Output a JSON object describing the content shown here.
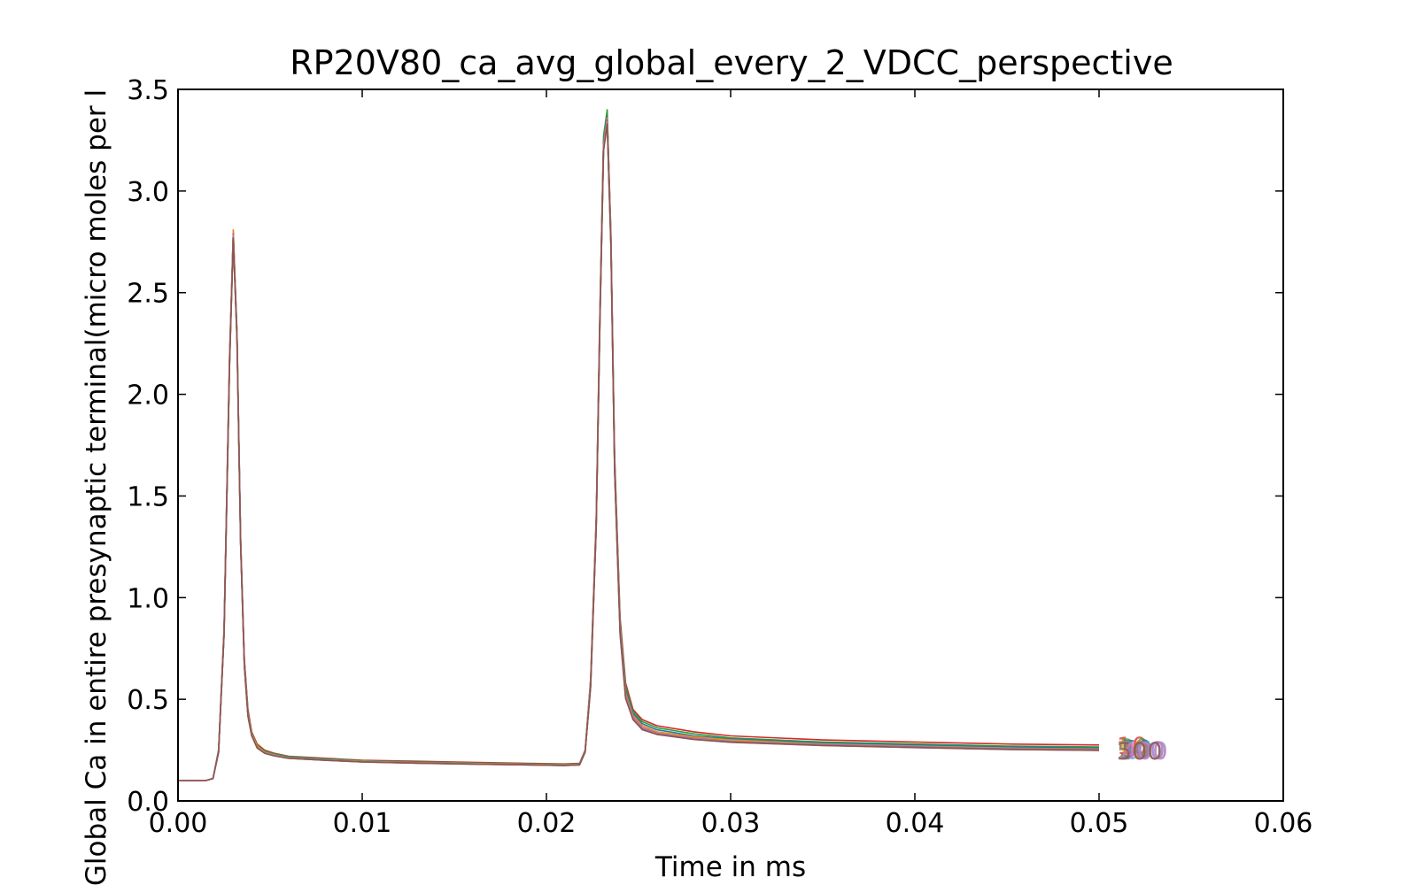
{
  "chart_data": {
    "type": "line",
    "title": "RP20V80_ca_avg_global_every_2_VDCC_perspective",
    "xlabel": "Time in ms",
    "ylabel": "Global Ca in entire presynaptic terminal(micro moles per l",
    "xlim": [
      0,
      0.06
    ],
    "ylim": [
      0,
      3.5
    ],
    "xticks": [
      "0.00",
      "0.01",
      "0.02",
      "0.03",
      "0.04",
      "0.05",
      "0.06"
    ],
    "yticks": [
      "0.0",
      "0.5",
      "1.0",
      "1.5",
      "2.0",
      "2.5",
      "3.0",
      "3.5"
    ],
    "grid": false,
    "legend": "none",
    "end_labels": [
      "10",
      "30",
      "50",
      "70",
      "90",
      "100",
      "200",
      "300",
      "400",
      "500"
    ],
    "x": [
      0,
      0.0015,
      0.0019,
      0.0022,
      0.0025,
      0.0028,
      0.003,
      0.0032,
      0.0034,
      0.0036,
      0.0038,
      0.004,
      0.0043,
      0.0047,
      0.0052,
      0.006,
      0.008,
      0.01,
      0.013,
      0.016,
      0.019,
      0.021,
      0.0218,
      0.0221,
      0.0224,
      0.0227,
      0.0229,
      0.0231,
      0.0233,
      0.0235,
      0.0237,
      0.024,
      0.0243,
      0.0247,
      0.0252,
      0.026,
      0.028,
      0.03,
      0.035,
      0.04,
      0.045,
      0.05
    ],
    "series": [
      {
        "values": [
          0.1,
          0.1,
          0.11,
          0.25,
          0.85,
          2.2,
          2.78,
          2.3,
          1.3,
          0.7,
          0.45,
          0.34,
          0.28,
          0.25,
          0.235,
          0.22,
          0.21,
          0.2,
          0.195,
          0.19,
          0.185,
          0.182,
          0.185,
          0.25,
          0.6,
          1.4,
          2.4,
          3.25,
          3.38,
          2.8,
          1.7,
          0.9,
          0.58,
          0.45,
          0.4,
          0.37,
          0.34,
          0.32,
          0.3,
          0.29,
          0.28,
          0.275
        ],
        "color": "#d62728"
      },
      {
        "values": [
          0.1,
          0.1,
          0.11,
          0.25,
          0.84,
          2.18,
          2.8,
          2.31,
          1.29,
          0.69,
          0.44,
          0.335,
          0.275,
          0.245,
          0.232,
          0.218,
          0.207,
          0.198,
          0.192,
          0.187,
          0.183,
          0.18,
          0.183,
          0.248,
          0.59,
          1.38,
          2.38,
          3.27,
          3.4,
          2.78,
          1.68,
          0.88,
          0.56,
          0.44,
          0.39,
          0.36,
          0.33,
          0.31,
          0.29,
          0.28,
          0.27,
          0.265
        ],
        "color": "#2ca02c"
      },
      {
        "values": [
          0.1,
          0.1,
          0.11,
          0.24,
          0.83,
          2.16,
          2.79,
          2.29,
          1.28,
          0.68,
          0.43,
          0.33,
          0.27,
          0.242,
          0.229,
          0.215,
          0.205,
          0.196,
          0.19,
          0.185,
          0.181,
          0.178,
          0.181,
          0.245,
          0.58,
          1.36,
          2.36,
          3.24,
          3.37,
          2.77,
          1.66,
          0.86,
          0.54,
          0.43,
          0.38,
          0.35,
          0.32,
          0.305,
          0.285,
          0.275,
          0.265,
          0.26
        ],
        "color": "#1f77b4"
      },
      {
        "values": [
          0.1,
          0.1,
          0.11,
          0.24,
          0.83,
          2.17,
          2.81,
          2.3,
          1.28,
          0.68,
          0.43,
          0.33,
          0.27,
          0.24,
          0.227,
          0.213,
          0.203,
          0.195,
          0.188,
          0.184,
          0.18,
          0.177,
          0.18,
          0.244,
          0.58,
          1.37,
          2.37,
          3.23,
          3.36,
          2.76,
          1.65,
          0.85,
          0.53,
          0.42,
          0.37,
          0.34,
          0.315,
          0.3,
          0.28,
          0.27,
          0.26,
          0.255
        ],
        "color": "#ff7f0e"
      },
      {
        "values": [
          0.1,
          0.1,
          0.11,
          0.24,
          0.82,
          2.15,
          2.77,
          2.28,
          1.27,
          0.67,
          0.42,
          0.325,
          0.265,
          0.238,
          0.225,
          0.212,
          0.202,
          0.194,
          0.187,
          0.183,
          0.179,
          0.176,
          0.179,
          0.242,
          0.57,
          1.35,
          2.35,
          3.22,
          3.35,
          2.75,
          1.64,
          0.84,
          0.52,
          0.41,
          0.36,
          0.335,
          0.31,
          0.295,
          0.278,
          0.268,
          0.258,
          0.252
        ],
        "color": "#bcbd22"
      },
      {
        "values": [
          0.1,
          0.1,
          0.11,
          0.24,
          0.82,
          2.15,
          2.78,
          2.28,
          1.27,
          0.67,
          0.42,
          0.322,
          0.262,
          0.236,
          0.224,
          0.211,
          0.201,
          0.193,
          0.186,
          0.182,
          0.178,
          0.175,
          0.178,
          0.241,
          0.57,
          1.35,
          2.34,
          3.21,
          3.34,
          2.74,
          1.63,
          0.83,
          0.51,
          0.405,
          0.355,
          0.33,
          0.305,
          0.29,
          0.275,
          0.265,
          0.255,
          0.25
        ],
        "color": "#17becf"
      },
      {
        "values": [
          0.1,
          0.1,
          0.11,
          0.24,
          0.82,
          2.14,
          2.76,
          2.27,
          1.26,
          0.66,
          0.415,
          0.32,
          0.26,
          0.234,
          0.222,
          0.21,
          0.2,
          0.192,
          0.185,
          0.181,
          0.177,
          0.174,
          0.177,
          0.24,
          0.56,
          1.34,
          2.33,
          3.2,
          3.33,
          2.73,
          1.62,
          0.82,
          0.505,
          0.4,
          0.35,
          0.327,
          0.302,
          0.288,
          0.272,
          0.262,
          0.253,
          0.248
        ],
        "color": "#7f7f7f"
      },
      {
        "values": [
          0.1,
          0.1,
          0.11,
          0.24,
          0.83,
          2.16,
          2.79,
          2.29,
          1.27,
          0.67,
          0.42,
          0.324,
          0.264,
          0.237,
          0.224,
          0.211,
          0.201,
          0.193,
          0.187,
          0.182,
          0.178,
          0.175,
          0.178,
          0.241,
          0.57,
          1.36,
          2.35,
          3.22,
          3.35,
          2.75,
          1.64,
          0.84,
          0.52,
          0.41,
          0.36,
          0.333,
          0.308,
          0.293,
          0.277,
          0.267,
          0.257,
          0.252
        ],
        "color": "#9467bd"
      },
      {
        "values": [
          0.1,
          0.1,
          0.11,
          0.24,
          0.82,
          2.15,
          2.78,
          2.28,
          1.27,
          0.67,
          0.42,
          0.323,
          0.263,
          0.236,
          0.223,
          0.21,
          0.2,
          0.192,
          0.186,
          0.181,
          0.177,
          0.174,
          0.177,
          0.24,
          0.57,
          1.35,
          2.34,
          3.21,
          3.34,
          2.74,
          1.63,
          0.83,
          0.51,
          0.405,
          0.355,
          0.33,
          0.305,
          0.29,
          0.274,
          0.264,
          0.254,
          0.249
        ],
        "color": "#e377c2"
      },
      {
        "values": [
          0.1,
          0.1,
          0.11,
          0.24,
          0.82,
          2.14,
          2.77,
          2.27,
          1.26,
          0.665,
          0.418,
          0.321,
          0.261,
          0.235,
          0.222,
          0.21,
          0.2,
          0.192,
          0.186,
          0.181,
          0.177,
          0.174,
          0.177,
          0.24,
          0.56,
          1.34,
          2.33,
          3.2,
          3.33,
          2.73,
          1.62,
          0.82,
          0.505,
          0.4,
          0.352,
          0.328,
          0.303,
          0.289,
          0.273,
          0.263,
          0.254,
          0.249
        ],
        "color": "#8c564b"
      }
    ]
  }
}
